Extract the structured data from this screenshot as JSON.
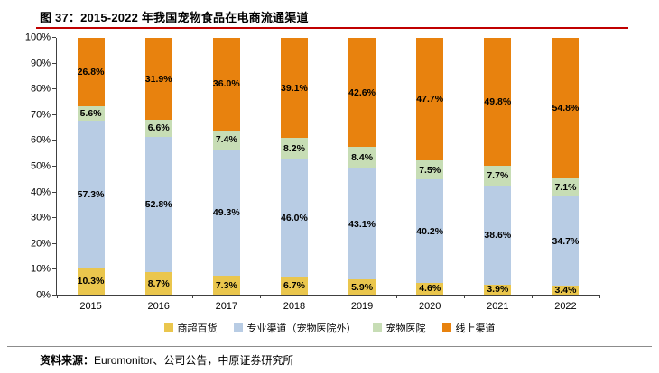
{
  "header": {
    "title": "图 37：2015-2022 年我国宠物食品在电商流通渠道"
  },
  "chart_data": {
    "type": "bar",
    "stacked": true,
    "percent_stacked": true,
    "title": "图 37：2015-2022 年我国宠物食品在电商流通渠道",
    "xlabel": "",
    "ylabel": "",
    "unit": "%",
    "categories": [
      "2015",
      "2016",
      "2017",
      "2018",
      "2019",
      "2020",
      "2021",
      "2022"
    ],
    "series": [
      {
        "name": "商超百货",
        "color": "#EAC64D",
        "values": [
          10.3,
          8.7,
          7.3,
          6.7,
          5.9,
          4.6,
          3.9,
          3.4
        ]
      },
      {
        "name": "专业渠道（宠物医院外）",
        "color": "#B8CCE4",
        "values": [
          57.3,
          52.8,
          49.3,
          46.0,
          43.1,
          40.2,
          38.6,
          34.7
        ]
      },
      {
        "name": "宠物医院",
        "color": "#C7DDB5",
        "values": [
          5.6,
          6.6,
          7.4,
          8.2,
          8.4,
          7.5,
          7.7,
          7.1
        ]
      },
      {
        "name": "线上渠道",
        "color": "#E8820E",
        "values": [
          26.8,
          31.9,
          36.0,
          39.1,
          42.6,
          47.7,
          49.8,
          54.8
        ]
      }
    ],
    "ylim": [
      0,
      100
    ],
    "y_ticks": [
      "0%",
      "10%",
      "20%",
      "30%",
      "40%",
      "50%",
      "60%",
      "70%",
      "80%",
      "90%",
      "100%"
    ],
    "grid": false,
    "legend_position": "bottom",
    "data_labels": "shown, one decimal with % sign, centered in each segment"
  },
  "accent": {
    "title_rule_color": "#C00000"
  },
  "footer": {
    "label": "资料来源：",
    "text": "Euromonitor、公司公告，中原证券研究所"
  }
}
